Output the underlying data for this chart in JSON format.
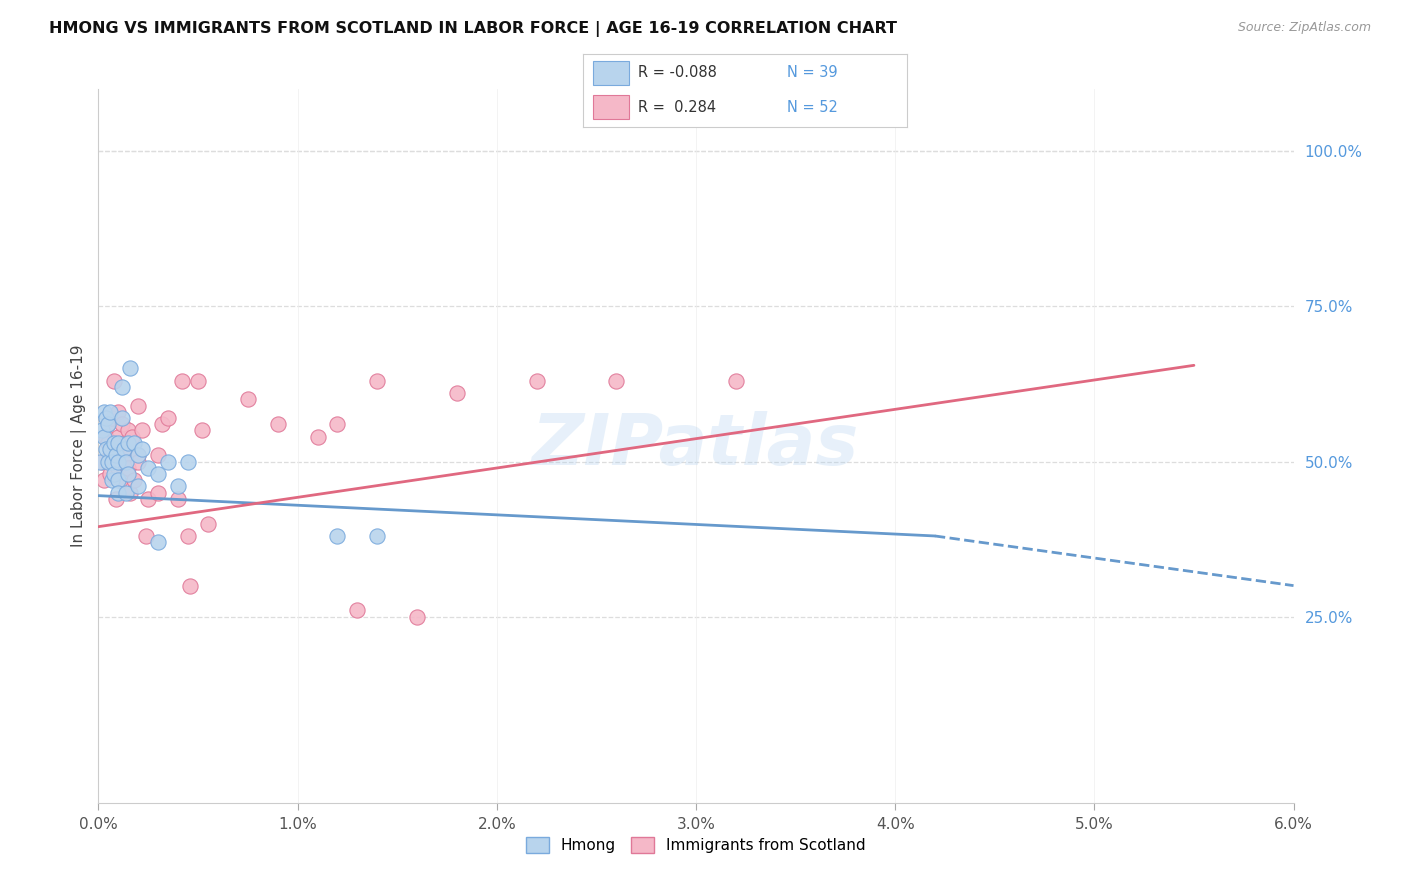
{
  "title": "HMONG VS IMMIGRANTS FROM SCOTLAND IN LABOR FORCE | AGE 16-19 CORRELATION CHART",
  "source": "Source: ZipAtlas.com",
  "ylabel": "In Labor Force | Age 16-19",
  "right_ytick_labels": [
    "100.0%",
    "75.0%",
    "50.0%",
    "25.0%"
  ],
  "right_ytick_vals": [
    1.0,
    0.75,
    0.5,
    0.25
  ],
  "legend_hmong": "Hmong",
  "legend_scotland": "Immigrants from Scotland",
  "R_hmong": -0.088,
  "N_hmong": 39,
  "R_scotland": 0.284,
  "N_scotland": 52,
  "hmong_face_color": "#b8d4ed",
  "scotland_face_color": "#f5b8c8",
  "hmong_edge_color": "#7aaadd",
  "scotland_edge_color": "#e07898",
  "hmong_line_color": "#6699cc",
  "scotland_line_color": "#e06880",
  "watermark": "ZIPatlas",
  "xlim": [
    0.0,
    0.06
  ],
  "ylim": [
    -0.05,
    1.1
  ],
  "hmong_x": [
    0.0001,
    0.0002,
    0.0003,
    0.0003,
    0.0004,
    0.0004,
    0.0005,
    0.0005,
    0.0006,
    0.0006,
    0.0007,
    0.0007,
    0.0008,
    0.0008,
    0.0009,
    0.001,
    0.001,
    0.001,
    0.001,
    0.0012,
    0.0012,
    0.0013,
    0.0014,
    0.0014,
    0.0015,
    0.0015,
    0.0016,
    0.0018,
    0.002,
    0.002,
    0.0022,
    0.0025,
    0.003,
    0.003,
    0.0035,
    0.004,
    0.0045,
    0.012,
    0.014
  ],
  "hmong_y": [
    0.5,
    0.55,
    0.58,
    0.54,
    0.57,
    0.52,
    0.56,
    0.5,
    0.58,
    0.52,
    0.5,
    0.47,
    0.53,
    0.48,
    0.51,
    0.53,
    0.5,
    0.47,
    0.45,
    0.62,
    0.57,
    0.52,
    0.5,
    0.45,
    0.53,
    0.48,
    0.65,
    0.53,
    0.51,
    0.46,
    0.52,
    0.49,
    0.48,
    0.37,
    0.5,
    0.46,
    0.5,
    0.38,
    0.38
  ],
  "scotland_x": [
    0.0002,
    0.0003,
    0.0004,
    0.0005,
    0.0005,
    0.0006,
    0.0006,
    0.0007,
    0.0008,
    0.0008,
    0.0009,
    0.001,
    0.001,
    0.001,
    0.0011,
    0.0012,
    0.0013,
    0.0014,
    0.0015,
    0.0015,
    0.0016,
    0.0016,
    0.0017,
    0.0018,
    0.002,
    0.002,
    0.002,
    0.0022,
    0.0024,
    0.0025,
    0.003,
    0.003,
    0.0032,
    0.0035,
    0.004,
    0.0042,
    0.0045,
    0.0046,
    0.005,
    0.0052,
    0.0055,
    0.0075,
    0.009,
    0.011,
    0.012,
    0.013,
    0.014,
    0.016,
    0.018,
    0.022,
    0.026,
    0.032
  ],
  "scotland_y": [
    0.5,
    0.47,
    0.54,
    0.53,
    0.56,
    0.51,
    0.48,
    0.57,
    0.5,
    0.63,
    0.44,
    0.58,
    0.54,
    0.49,
    0.47,
    0.56,
    0.53,
    0.51,
    0.49,
    0.55,
    0.52,
    0.45,
    0.54,
    0.47,
    0.59,
    0.51,
    0.5,
    0.55,
    0.38,
    0.44,
    0.51,
    0.45,
    0.56,
    0.57,
    0.44,
    0.63,
    0.38,
    0.3,
    0.63,
    0.55,
    0.4,
    0.6,
    0.56,
    0.54,
    0.56,
    0.26,
    0.63,
    0.25,
    0.61,
    0.63,
    0.63,
    0.63
  ]
}
